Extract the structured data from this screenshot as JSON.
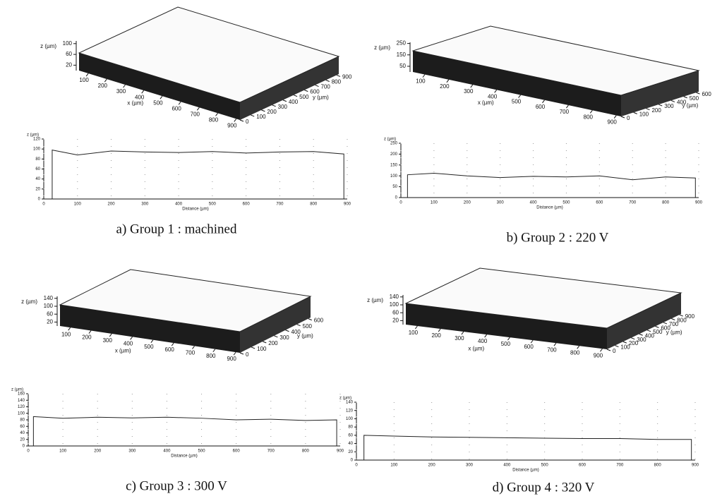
{
  "chart_data": [
    {
      "type": "line",
      "caption": "a) Group 1 : machined",
      "surface": {
        "x_label": "x (µm)",
        "y_label": "y (µm)",
        "z_label": "z (µm)",
        "xlim": [
          50,
          920
        ],
        "xticks": [
          100,
          200,
          300,
          400,
          500,
          600,
          700,
          800,
          900
        ],
        "ylim": [
          0,
          920
        ],
        "yticks": [
          0,
          100,
          200,
          300,
          400,
          500,
          600,
          700,
          800,
          900
        ],
        "zlim": [
          0,
          110
        ],
        "zticks": [
          20,
          60,
          100
        ]
      },
      "y_label": "z (µm)",
      "x_label": "Distance (µm)",
      "x": [
        25,
        25,
        100,
        200,
        300,
        400,
        500,
        600,
        700,
        800,
        890,
        890
      ],
      "values": [
        0,
        98,
        88,
        96,
        94,
        93,
        95,
        92,
        94,
        95,
        90,
        0
      ],
      "xlim": [
        0,
        900
      ],
      "xticks": [
        0,
        100,
        200,
        300,
        400,
        500,
        600,
        700,
        800,
        900
      ],
      "ylim": [
        0,
        120
      ],
      "yticks": [
        0,
        20,
        40,
        60,
        80,
        100,
        120
      ]
    },
    {
      "type": "line",
      "caption": "b) Group 2 : 220 V",
      "surface": {
        "x_label": "x (µm)",
        "y_label": "y (µm)",
        "z_label": "z (µm)",
        "xlim": [
          50,
          920
        ],
        "xticks": [
          100,
          200,
          300,
          400,
          500,
          600,
          700,
          800,
          900
        ],
        "ylim": [
          0,
          620
        ],
        "yticks": [
          0,
          100,
          200,
          300,
          400,
          500,
          600
        ],
        "zlim": [
          0,
          260
        ],
        "zticks": [
          50,
          150,
          250
        ]
      },
      "y_label": "z (µm)",
      "x_label": "Distance (µm)",
      "x": [
        20,
        20,
        100,
        200,
        300,
        400,
        500,
        600,
        700,
        800,
        890,
        890
      ],
      "values": [
        0,
        105,
        112,
        100,
        92,
        98,
        95,
        100,
        82,
        95,
        90,
        0
      ],
      "xlim": [
        0,
        900
      ],
      "xticks": [
        0,
        100,
        200,
        300,
        400,
        500,
        600,
        700,
        800,
        900
      ],
      "ylim": [
        0,
        250
      ],
      "yticks": [
        0,
        50,
        100,
        150,
        200,
        250
      ]
    },
    {
      "type": "line",
      "caption": "c) Group 3 : 300 V",
      "surface": {
        "x_label": "x (µm)",
        "y_label": "y (µm)",
        "z_label": "z (µm)",
        "xlim": [
          50,
          920
        ],
        "xticks": [
          100,
          200,
          300,
          400,
          500,
          600,
          700,
          800,
          900
        ],
        "ylim": [
          0,
          620
        ],
        "yticks": [
          0,
          100,
          200,
          300,
          400,
          500,
          600
        ],
        "zlim": [
          0,
          150
        ],
        "zticks": [
          20,
          60,
          100,
          140
        ]
      },
      "y_label": "z (µm)",
      "x_label": "Distance (µm)",
      "x": [
        15,
        15,
        100,
        200,
        300,
        400,
        500,
        600,
        700,
        800,
        890,
        890
      ],
      "values": [
        0,
        90,
        85,
        88,
        86,
        88,
        85,
        80,
        82,
        78,
        80,
        0
      ],
      "xlim": [
        0,
        900
      ],
      "xticks": [
        0,
        100,
        200,
        300,
        400,
        500,
        600,
        700,
        800,
        900
      ],
      "ylim": [
        0,
        160
      ],
      "yticks": [
        0,
        20,
        40,
        60,
        80,
        100,
        120,
        140,
        160
      ]
    },
    {
      "type": "line",
      "caption": "d) Group 4 : 320 V",
      "surface": {
        "x_label": "x (µm)",
        "y_label": "y (µm)",
        "z_label": "z (µm)",
        "xlim": [
          50,
          920
        ],
        "xticks": [
          100,
          200,
          300,
          400,
          500,
          600,
          700,
          800,
          900
        ],
        "ylim": [
          0,
          920
        ],
        "yticks": [
          0,
          100,
          200,
          300,
          400,
          500,
          600,
          700,
          800,
          900
        ],
        "zlim": [
          0,
          150
        ],
        "zticks": [
          20,
          60,
          100,
          140
        ]
      },
      "y_label": "z (µm)",
      "x_label": "Distance (µm)",
      "x": [
        20,
        20,
        100,
        200,
        300,
        400,
        500,
        600,
        700,
        800,
        890,
        890
      ],
      "values": [
        0,
        60,
        58,
        56,
        55,
        54,
        53,
        52,
        52,
        50,
        50,
        0
      ],
      "xlim": [
        0,
        900
      ],
      "xticks": [
        0,
        100,
        200,
        300,
        400,
        500,
        600,
        700,
        800,
        900
      ],
      "ylim": [
        0,
        140
      ],
      "yticks": [
        0,
        20,
        40,
        60,
        80,
        100,
        120,
        140
      ]
    }
  ]
}
